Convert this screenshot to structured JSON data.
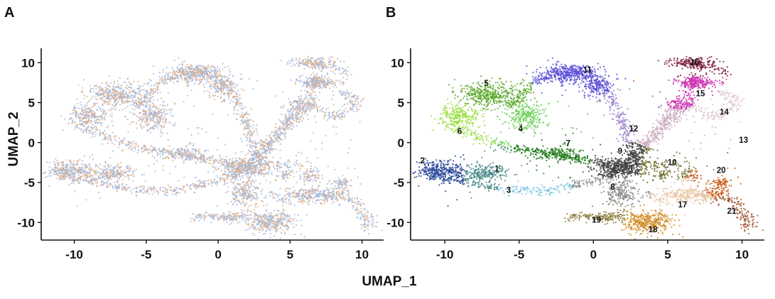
{
  "chart_data": [
    {
      "panel": "A",
      "type": "scatter",
      "xlabel": "",
      "ylabel": "UMAP_2",
      "xlim": [
        -12.3,
        11.5
      ],
      "ylim": [
        -12.2,
        11.8
      ],
      "xticks": [
        -10,
        -5,
        0,
        5,
        10
      ],
      "yticks": [
        10,
        5,
        0,
        -5,
        -10
      ],
      "xtick_labels": [
        "-10",
        "-5",
        "0",
        "5",
        "10"
      ],
      "ytick_labels": [
        "10",
        "5",
        "0",
        "-5",
        "-10"
      ],
      "grid": false,
      "legend": "none",
      "series": [
        {
          "color": "#9db8e2"
        },
        {
          "color": "#e0ad85"
        }
      ]
    },
    {
      "panel": "B",
      "type": "scatter",
      "xlabel": "",
      "ylabel": "",
      "xlim": [
        -12.3,
        11.5
      ],
      "ylim": [
        -12.2,
        11.8
      ],
      "xticks": [
        -10,
        -5,
        0,
        5,
        10
      ],
      "yticks": [
        10,
        5,
        0,
        -5,
        -10
      ],
      "xtick_labels": [
        "-10",
        "-5",
        "0",
        "5",
        "10"
      ],
      "ytick_labels": [
        "10",
        "5",
        "0",
        "-5",
        "-10"
      ],
      "grid": false,
      "legend": "none",
      "clusters": [
        {
          "label": "1",
          "x": -6.5,
          "y": -3.6,
          "color": "#4a8a8a"
        },
        {
          "label": "2",
          "x": -11.5,
          "y": -2.6,
          "color": "#2c4a9a"
        },
        {
          "label": "3",
          "x": -5.7,
          "y": -6.3,
          "color": "#7ec4e0"
        },
        {
          "label": "4",
          "x": -4.9,
          "y": 1.4,
          "color": "#6fcf5a"
        },
        {
          "label": "5",
          "x": -7.2,
          "y": 7.1,
          "color": "#5ca82c"
        },
        {
          "label": "6",
          "x": -9.0,
          "y": 1.1,
          "color": "#98de40"
        },
        {
          "label": "7",
          "x": -1.7,
          "y": -0.4,
          "color": "#1f7a18"
        },
        {
          "label": "8",
          "x": 1.3,
          "y": -5.9,
          "color": "#8c8c8c"
        },
        {
          "label": "9",
          "x": 1.8,
          "y": -1.4,
          "color": "#3d3d3d"
        },
        {
          "label": "10",
          "x": 5.3,
          "y": -2.8,
          "color": "#6b6a2a"
        },
        {
          "label": "11",
          "x": -0.4,
          "y": 8.8,
          "color": "#5a4fd6"
        },
        {
          "label": "12",
          "x": 2.7,
          "y": 1.4,
          "color": "#9b85cc"
        },
        {
          "label": "13",
          "x": 10.1,
          "y": 0.0,
          "color": "#ccaac0"
        },
        {
          "label": "14",
          "x": 8.8,
          "y": 3.5,
          "color": "#e2c8d2"
        },
        {
          "label": "15",
          "x": 7.2,
          "y": 5.8,
          "color": "#cc33b0"
        },
        {
          "label": "16",
          "x": 6.8,
          "y": 9.7,
          "color": "#7a1838"
        },
        {
          "label": "17",
          "x": 6.0,
          "y": -8.1,
          "color": "#e6c6a2"
        },
        {
          "label": "18",
          "x": 4.0,
          "y": -11.2,
          "color": "#d08a22"
        },
        {
          "label": "19",
          "x": 0.2,
          "y": -10.0,
          "color": "#8a7a3a"
        },
        {
          "label": "20",
          "x": 8.6,
          "y": -3.8,
          "color": "#c85a14"
        },
        {
          "label": "21",
          "x": 9.3,
          "y": -8.9,
          "color": "#a0522d"
        }
      ]
    }
  ],
  "panel_letters": {
    "a": "A",
    "b": "B"
  },
  "axis_titles": {
    "x": "UMAP_1",
    "y": "UMAP_2"
  }
}
